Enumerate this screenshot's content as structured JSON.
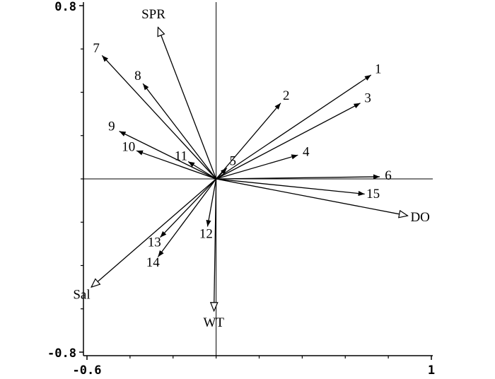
{
  "chart_data": {
    "type": "biplot",
    "xlim": [
      -0.6,
      1.0
    ],
    "ylim": [
      -0.8,
      0.8
    ],
    "xticks": [
      -0.6,
      1.0
    ],
    "yticks": [
      0.8,
      -0.8
    ],
    "xminor_ticks": [
      -0.4,
      -0.2,
      0,
      0.2,
      0.4,
      0.6,
      0.8
    ],
    "yminor_ticks": [
      0.6,
      0.4,
      0.2,
      0,
      -0.2,
      -0.4,
      -0.6
    ],
    "color": "#000000",
    "arrow_sets": [
      {
        "head": "solid",
        "labels": [
          "1",
          "2",
          "3",
          "4",
          "5",
          "6",
          "7",
          "8",
          "9",
          "10",
          "11",
          "12",
          "13",
          "14",
          "15"
        ],
        "x": [
          0.72,
          0.3,
          0.67,
          0.38,
          0.05,
          0.76,
          -0.53,
          -0.34,
          -0.45,
          -0.37,
          -0.13,
          -0.04,
          -0.26,
          -0.27,
          0.69
        ],
        "y": [
          0.48,
          0.35,
          0.35,
          0.11,
          0.05,
          0.01,
          0.57,
          0.44,
          0.22,
          0.13,
          0.08,
          -0.22,
          -0.27,
          -0.36,
          -0.07
        ]
      },
      {
        "head": "open",
        "labels": [
          "SPR",
          "Sal",
          "WT",
          "DO"
        ],
        "x": [
          -0.27,
          -0.58,
          -0.01,
          0.89
        ],
        "y": [
          0.7,
          -0.5,
          -0.61,
          -0.17
        ]
      }
    ]
  }
}
